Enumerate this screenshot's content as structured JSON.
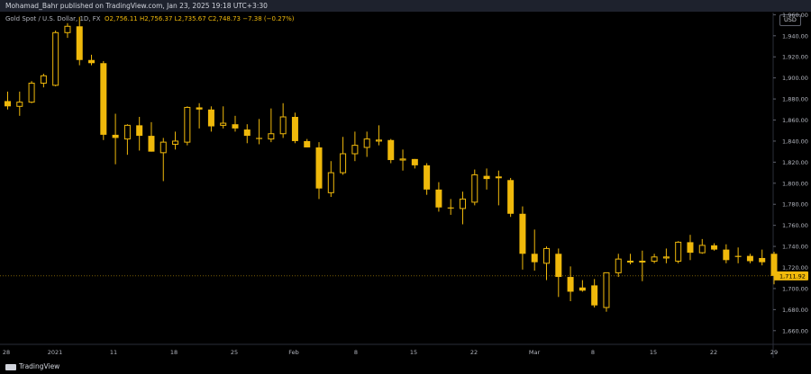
{
  "header": {
    "publisher": "Mohamad_Bahr published on TradingView.com, Jan 23, 2025 19:18 UTC+3:30"
  },
  "legend": {
    "symbol": "Gold Spot / U.S. Dollar, 1D, FX",
    "o": "O2,756.11",
    "h": "H2,756.37",
    "l": "L2,735.67",
    "c": "C2,748.73",
    "chg": "−7.38 (−0.27%)"
  },
  "currency_button": "USD",
  "footer": {
    "brand": "TradingView"
  },
  "colors": {
    "candle": "#f0b90b",
    "background": "#000000",
    "axis_text": "#b2b5be"
  },
  "chart_data": {
    "type": "candlestick",
    "price_label": "1,711.92",
    "y_ticks": [
      "1,960.00",
      "1,940.00",
      "1,920.00",
      "1,900.00",
      "1,880.00",
      "1,860.00",
      "1,840.00",
      "1,820.00",
      "1,800.00",
      "1,780.00",
      "1,760.00",
      "1,740.00",
      "1,720.00",
      "1,700.00",
      "1,680.00",
      "1,660.00"
    ],
    "ylim": [
      1650,
      1978
    ],
    "x_ticks": [
      "28",
      "2021",
      "11",
      "18",
      "25",
      "Feb",
      "8",
      "15",
      "22",
      "Mar",
      "8",
      "15",
      "22",
      "29"
    ],
    "candles": [
      {
        "o": 1878,
        "h": 1887,
        "l": 1870,
        "c": 1873
      },
      {
        "o": 1873,
        "h": 1887,
        "l": 1864,
        "c": 1877
      },
      {
        "o": 1877,
        "h": 1897,
        "l": 1876,
        "c": 1895
      },
      {
        "o": 1895,
        "h": 1904,
        "l": 1891,
        "c": 1902
      },
      {
        "o": 1893,
        "h": 1945,
        "l": 1892,
        "c": 1943
      },
      {
        "o": 1943,
        "h": 1952,
        "l": 1938,
        "c": 1949
      },
      {
        "o": 1949,
        "h": 1958,
        "l": 1912,
        "c": 1917
      },
      {
        "o": 1917,
        "h": 1922,
        "l": 1912,
        "c": 1914
      },
      {
        "o": 1914,
        "h": 1916,
        "l": 1841,
        "c": 1846
      },
      {
        "o": 1846,
        "h": 1866,
        "l": 1818,
        "c": 1843
      },
      {
        "o": 1842,
        "h": 1856,
        "l": 1827,
        "c": 1855
      },
      {
        "o": 1855,
        "h": 1863,
        "l": 1831,
        "c": 1845
      },
      {
        "o": 1845,
        "h": 1858,
        "l": 1830,
        "c": 1830
      },
      {
        "o": 1829,
        "h": 1843,
        "l": 1802,
        "c": 1839
      },
      {
        "o": 1837,
        "h": 1849,
        "l": 1832,
        "c": 1840
      },
      {
        "o": 1839,
        "h": 1873,
        "l": 1836,
        "c": 1872
      },
      {
        "o": 1872,
        "h": 1876,
        "l": 1852,
        "c": 1870
      },
      {
        "o": 1870,
        "h": 1873,
        "l": 1849,
        "c": 1854
      },
      {
        "o": 1855,
        "h": 1873,
        "l": 1852,
        "c": 1857
      },
      {
        "o": 1856,
        "h": 1864,
        "l": 1849,
        "c": 1852
      },
      {
        "o": 1851,
        "h": 1856,
        "l": 1838,
        "c": 1845
      },
      {
        "o": 1843,
        "h": 1861,
        "l": 1837,
        "c": 1842
      },
      {
        "o": 1842,
        "h": 1871,
        "l": 1839,
        "c": 1847
      },
      {
        "o": 1847,
        "h": 1876,
        "l": 1843,
        "c": 1863
      },
      {
        "o": 1863,
        "h": 1867,
        "l": 1838,
        "c": 1840
      },
      {
        "o": 1840,
        "h": 1842,
        "l": 1834,
        "c": 1834
      },
      {
        "o": 1834,
        "h": 1839,
        "l": 1785,
        "c": 1795
      },
      {
        "o": 1791,
        "h": 1821,
        "l": 1787,
        "c": 1810
      },
      {
        "o": 1810,
        "h": 1844,
        "l": 1808,
        "c": 1828
      },
      {
        "o": 1828,
        "h": 1849,
        "l": 1821,
        "c": 1836
      },
      {
        "o": 1834,
        "h": 1849,
        "l": 1825,
        "c": 1842
      },
      {
        "o": 1840,
        "h": 1855,
        "l": 1836,
        "c": 1841
      },
      {
        "o": 1841,
        "h": 1842,
        "l": 1819,
        "c": 1822
      },
      {
        "o": 1822,
        "h": 1832,
        "l": 1812,
        "c": 1823
      },
      {
        "o": 1823,
        "h": 1823,
        "l": 1814,
        "c": 1817
      },
      {
        "o": 1817,
        "h": 1819,
        "l": 1789,
        "c": 1794
      },
      {
        "o": 1794,
        "h": 1801,
        "l": 1773,
        "c": 1777
      },
      {
        "o": 1777,
        "h": 1785,
        "l": 1770,
        "c": 1776
      },
      {
        "o": 1776,
        "h": 1792,
        "l": 1761,
        "c": 1785
      },
      {
        "o": 1782,
        "h": 1813,
        "l": 1779,
        "c": 1808
      },
      {
        "o": 1807,
        "h": 1814,
        "l": 1794,
        "c": 1804
      },
      {
        "o": 1806,
        "h": 1812,
        "l": 1779,
        "c": 1806
      },
      {
        "o": 1803,
        "h": 1805,
        "l": 1768,
        "c": 1771
      },
      {
        "o": 1771,
        "h": 1778,
        "l": 1718,
        "c": 1733
      },
      {
        "o": 1733,
        "h": 1756,
        "l": 1717,
        "c": 1725
      },
      {
        "o": 1724,
        "h": 1740,
        "l": 1708,
        "c": 1738
      },
      {
        "o": 1733,
        "h": 1738,
        "l": 1692,
        "c": 1711
      },
      {
        "o": 1711,
        "h": 1721,
        "l": 1688,
        "c": 1697
      },
      {
        "o": 1701,
        "h": 1708,
        "l": 1697,
        "c": 1698
      },
      {
        "o": 1703,
        "h": 1709,
        "l": 1682,
        "c": 1684
      },
      {
        "o": 1682,
        "h": 1715,
        "l": 1678,
        "c": 1715
      },
      {
        "o": 1715,
        "h": 1733,
        "l": 1711,
        "c": 1728
      },
      {
        "o": 1726,
        "h": 1733,
        "l": 1723,
        "c": 1726
      },
      {
        "o": 1726,
        "h": 1736,
        "l": 1707,
        "c": 1726
      },
      {
        "o": 1726,
        "h": 1733,
        "l": 1724,
        "c": 1730
      },
      {
        "o": 1729,
        "h": 1738,
        "l": 1724,
        "c": 1730
      },
      {
        "o": 1726,
        "h": 1745,
        "l": 1724,
        "c": 1744
      },
      {
        "o": 1744,
        "h": 1751,
        "l": 1727,
        "c": 1734
      },
      {
        "o": 1734,
        "h": 1747,
        "l": 1733,
        "c": 1741
      },
      {
        "o": 1741,
        "h": 1743,
        "l": 1736,
        "c": 1737
      },
      {
        "o": 1737,
        "h": 1742,
        "l": 1724,
        "c": 1727
      },
      {
        "o": 1731,
        "h": 1739,
        "l": 1724,
        "c": 1730
      },
      {
        "o": 1731,
        "h": 1733,
        "l": 1724,
        "c": 1726
      },
      {
        "o": 1729,
        "h": 1737,
        "l": 1722,
        "c": 1725
      },
      {
        "o": 1733,
        "h": 1735,
        "l": 1704,
        "c": 1712
      }
    ]
  }
}
